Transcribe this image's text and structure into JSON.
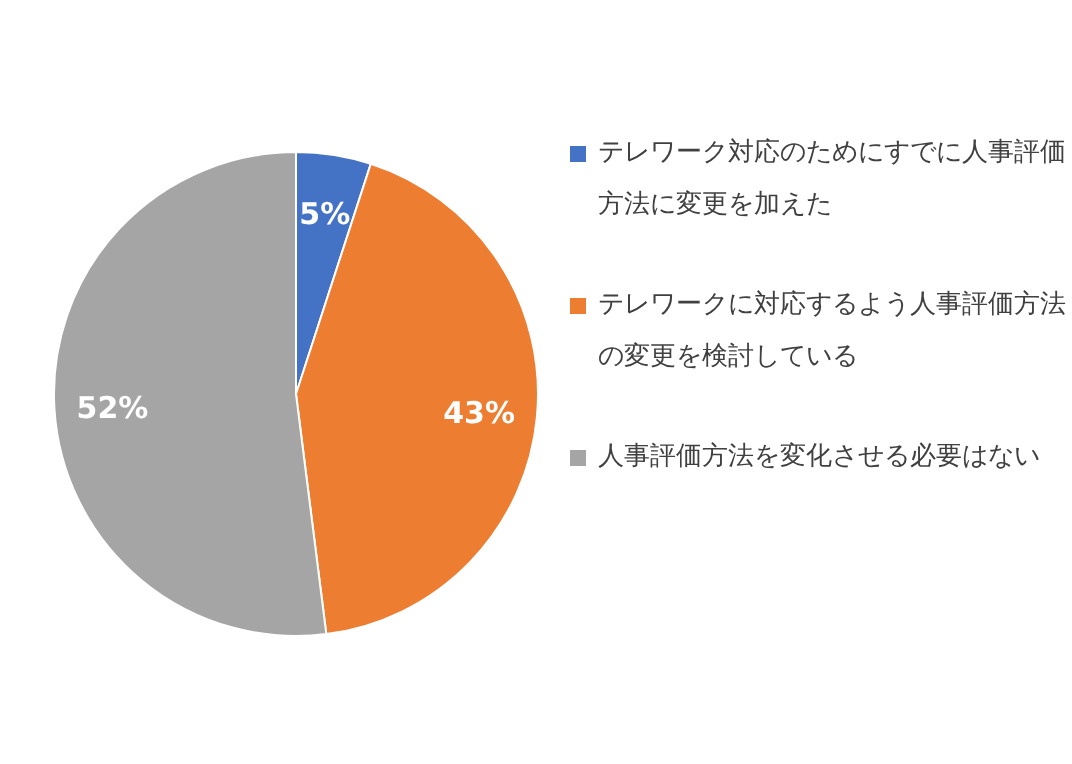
{
  "chart_data": {
    "type": "pie",
    "categories": [
      "テレワーク対応のためにすでに人事評価方法に変更を加えた",
      "テレワークに対応するよう人事評価方法の変更を検討している",
      "人事評価方法を変化させる必要はない"
    ],
    "values": [
      5,
      43,
      52
    ],
    "colors": [
      "#4472c4",
      "#ed7d31",
      "#a5a5a5"
    ],
    "value_labels": [
      "5%",
      "43%",
      "52%"
    ],
    "legend": "right"
  }
}
